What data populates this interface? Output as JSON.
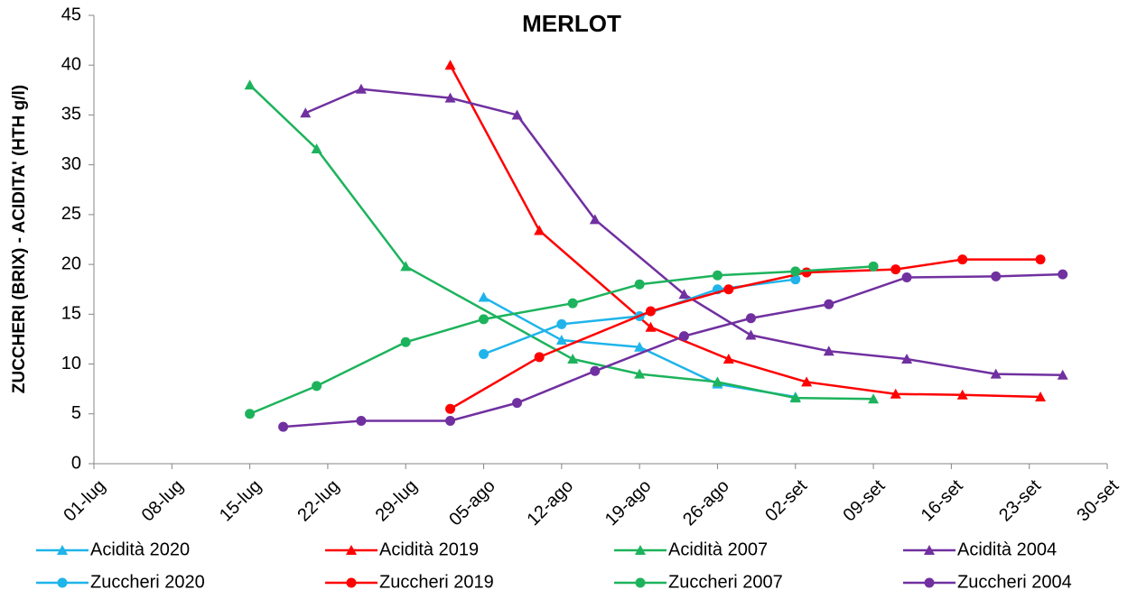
{
  "chart_data": {
    "type": "line",
    "title": "MERLOT",
    "y_label": "ZUCCHERI (BRIX) - ACIDITA' (HTH g/l)",
    "xticks": [
      "01-lug",
      "08-lug",
      "15-lug",
      "22-lug",
      "29-lug",
      "05-ago",
      "12-ago",
      "19-ago",
      "26-ago",
      "02-set",
      "09-set",
      "16-set",
      "23-set",
      "30-set"
    ],
    "ylim": [
      0,
      45
    ],
    "yticks": [
      0,
      5,
      10,
      15,
      20,
      25,
      30,
      35,
      40,
      45
    ],
    "grid": false,
    "legend": "bottom",
    "series": [
      {
        "name": "Acidità 2020",
        "color": "#1fb4ea",
        "marker": "triangle",
        "x": [
          "05-ago",
          "12-ago",
          "19-ago",
          "26-ago",
          "02-set"
        ],
        "values": [
          16.7,
          12.4,
          11.7,
          8,
          6.7
        ]
      },
      {
        "name": "Acidità 2019",
        "color": "#ff0000",
        "marker": "triangle",
        "x": [
          "02-ago",
          "10-ago",
          "20-ago",
          "27-ago",
          "03-set",
          "11-set",
          "17-set",
          "24-set"
        ],
        "values": [
          40,
          23.4,
          13.7,
          10.5,
          8.2,
          7,
          6.9,
          6.7
        ]
      },
      {
        "name": "Acidità 2007",
        "color": "#1db35c",
        "marker": "triangle",
        "x": [
          "15-lug",
          "21-lug",
          "29-lug",
          "13-ago",
          "19-ago",
          "26-ago",
          "02-set",
          "09-set"
        ],
        "values": [
          38,
          31.6,
          19.8,
          10.5,
          9,
          8.2,
          6.6,
          6.5
        ]
      },
      {
        "name": "Acidità 2004",
        "color": "#7030a0",
        "marker": "triangle",
        "x": [
          "20-lug",
          "25-lug",
          "02-ago",
          "08-ago",
          "15-ago",
          "23-ago",
          "29-ago",
          "05-set",
          "12-set",
          "20-set",
          "26-set"
        ],
        "values": [
          35.2,
          37.6,
          36.7,
          35,
          24.5,
          17,
          12.9,
          11.3,
          10.5,
          9,
          8.9
        ]
      },
      {
        "name": "Zuccheri 2020",
        "color": "#1fb4ea",
        "marker": "circle",
        "x": [
          "05-ago",
          "12-ago",
          "19-ago",
          "26-ago",
          "02-set"
        ],
        "values": [
          11,
          14,
          14.8,
          17.5,
          18.5
        ]
      },
      {
        "name": "Zuccheri 2019",
        "color": "#ff0000",
        "marker": "circle",
        "x": [
          "02-ago",
          "10-ago",
          "20-ago",
          "27-ago",
          "03-set",
          "11-set",
          "17-set",
          "24-set"
        ],
        "values": [
          5.5,
          10.7,
          15.3,
          17.5,
          19.2,
          19.5,
          20.5,
          20.5
        ]
      },
      {
        "name": "Zuccheri 2007",
        "color": "#1db35c",
        "marker": "circle",
        "x": [
          "15-lug",
          "21-lug",
          "29-lug",
          "05-ago",
          "13-ago",
          "19-ago",
          "26-ago",
          "02-set",
          "09-set"
        ],
        "values": [
          5,
          7.8,
          12.2,
          14.5,
          16.1,
          18,
          18.9,
          19.3,
          19.8
        ]
      },
      {
        "name": "Zuccheri 2004",
        "color": "#7030a0",
        "marker": "circle",
        "x": [
          "18-lug",
          "25-lug",
          "02-ago",
          "08-ago",
          "15-ago",
          "23-ago",
          "29-ago",
          "05-set",
          "12-set",
          "20-set",
          "26-set"
        ],
        "values": [
          3.7,
          4.3,
          4.3,
          6.1,
          9.3,
          12.8,
          14.6,
          16,
          18.7,
          18.8,
          19
        ]
      }
    ]
  }
}
